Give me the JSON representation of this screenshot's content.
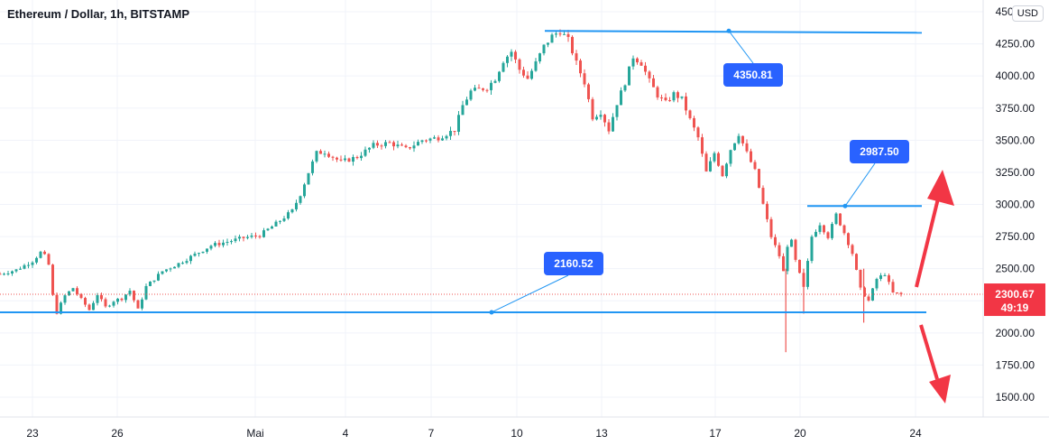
{
  "header": {
    "title": "Ethereum / Dollar, 1h, BITSTAMP",
    "currency_button": "USD"
  },
  "price_tag": {
    "price": "2300.67",
    "countdown": "49:19"
  },
  "colors": {
    "up": "#26a69a",
    "down": "#ef5350",
    "line": "#2196f3",
    "label_bg": "#2962ff",
    "arrow": "#f23645",
    "price_tag_bg": "#f23645"
  },
  "chart_data": {
    "type": "candlestick",
    "instrument": "Ethereum / Dollar",
    "interval": "1h",
    "exchange": "BITSTAMP",
    "ylim": [
      1350,
      4450
    ],
    "y_ticks": [
      "4500.00",
      "4250.00",
      "4000.00",
      "3750.00",
      "3500.00",
      "3250.00",
      "3000.00",
      "2750.00",
      "2500.00",
      "2250.00",
      "2000.00",
      "1750.00",
      "1500.00"
    ],
    "x_ticks": [
      "23",
      "26",
      "Mai",
      "4",
      "7",
      "10",
      "13",
      "17",
      "20",
      "24"
    ],
    "series": [
      {
        "price_path": [
          [
            0,
            2460
          ],
          [
            1,
            2490
          ],
          [
            2,
            2560
          ],
          [
            2.6,
            2640
          ],
          [
            3,
            2530
          ],
          [
            3.3,
            2240
          ],
          [
            3.5,
            2160
          ],
          [
            4,
            2290
          ],
          [
            4.5,
            2350
          ],
          [
            5,
            2260
          ],
          [
            5.5,
            2180
          ],
          [
            6,
            2300
          ],
          [
            6.5,
            2200
          ],
          [
            7,
            2250
          ],
          [
            7.5,
            2270
          ],
          [
            8,
            2330
          ],
          [
            8.5,
            2180
          ],
          [
            9,
            2360
          ],
          [
            10,
            2480
          ],
          [
            11,
            2540
          ],
          [
            12,
            2610
          ],
          [
            13,
            2680
          ],
          [
            14,
            2710
          ],
          [
            15,
            2740
          ],
          [
            16,
            2760
          ],
          [
            17,
            2850
          ],
          [
            18,
            2950
          ],
          [
            18.5,
            3080
          ],
          [
            19,
            3250
          ],
          [
            19.5,
            3400
          ],
          [
            20,
            3410
          ],
          [
            21,
            3330
          ],
          [
            22,
            3370
          ],
          [
            23,
            3460
          ],
          [
            24,
            3480
          ],
          [
            25,
            3430
          ],
          [
            26,
            3500
          ],
          [
            27,
            3520
          ],
          [
            28,
            3580
          ],
          [
            28.5,
            3770
          ],
          [
            29,
            3880
          ],
          [
            30,
            3910
          ],
          [
            30.5,
            3980
          ],
          [
            31,
            4120
          ],
          [
            31.5,
            4190
          ],
          [
            32,
            4050
          ],
          [
            32.5,
            3980
          ],
          [
            33,
            4100
          ],
          [
            33.5,
            4230
          ],
          [
            34,
            4310
          ],
          [
            34.5,
            4350
          ],
          [
            35,
            4280
          ],
          [
            35.5,
            4100
          ],
          [
            36,
            3950
          ],
          [
            36.5,
            3680
          ],
          [
            37,
            3720
          ],
          [
            37.5,
            3580
          ],
          [
            38,
            3790
          ],
          [
            38.5,
            3950
          ],
          [
            39,
            4150
          ],
          [
            39.5,
            4100
          ],
          [
            40,
            3960
          ],
          [
            40.5,
            3850
          ],
          [
            41,
            3790
          ],
          [
            41.5,
            3860
          ],
          [
            42,
            3820
          ],
          [
            42.5,
            3660
          ],
          [
            43,
            3520
          ],
          [
            43.5,
            3250
          ],
          [
            44,
            3400
          ],
          [
            44.5,
            3230
          ],
          [
            45,
            3430
          ],
          [
            45.5,
            3550
          ],
          [
            46,
            3400
          ],
          [
            46.5,
            3260
          ],
          [
            47,
            3000
          ],
          [
            47.5,
            2750
          ],
          [
            48,
            2600
          ],
          [
            48.3,
            2450
          ],
          [
            48.6,
            2800
          ],
          [
            49,
            2560
          ],
          [
            49.5,
            2350
          ],
          [
            50,
            2750
          ],
          [
            50.5,
            2850
          ],
          [
            51,
            2750
          ],
          [
            51.5,
            2920
          ],
          [
            52,
            2780
          ],
          [
            52.5,
            2620
          ],
          [
            53,
            2340
          ],
          [
            53.5,
            2250
          ],
          [
            54,
            2420
          ],
          [
            54.5,
            2460
          ],
          [
            55,
            2310
          ],
          [
            55.5,
            2300
          ]
        ]
      }
    ],
    "price_levels": [
      {
        "label": "4350.81",
        "value": 4350.81
      },
      {
        "label": "2987.50",
        "value": 2987.5
      },
      {
        "label": "2160.52",
        "value": 2160.52
      }
    ],
    "current_price": 2300.67
  }
}
